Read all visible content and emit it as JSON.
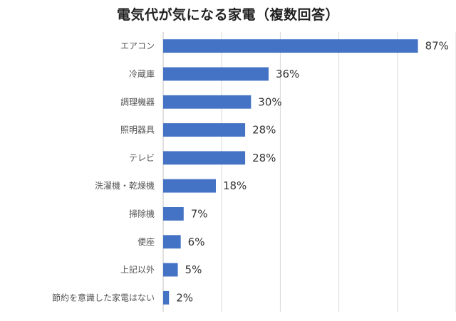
{
  "chart_data": {
    "type": "bar",
    "orientation": "horizontal",
    "title": "電気代が気になる家電（複数回答）",
    "categories": [
      "エアコン",
      "冷蔵庫",
      "調理機器",
      "照明器具",
      "テレビ",
      "洗濯機・乾燥機",
      "掃除機",
      "便座",
      "上記以外",
      "節約を意識した家電はない"
    ],
    "values": [
      87,
      36,
      30,
      28,
      28,
      18,
      7,
      6,
      5,
      2
    ],
    "value_labels": [
      "87%",
      "36%",
      "30%",
      "28%",
      "28%",
      "18%",
      "7%",
      "6%",
      "5%",
      "2%"
    ],
    "xlabel": "",
    "ylabel": "",
    "xlim": [
      0,
      100
    ],
    "grid": true,
    "bar_color": "#4472c4"
  }
}
